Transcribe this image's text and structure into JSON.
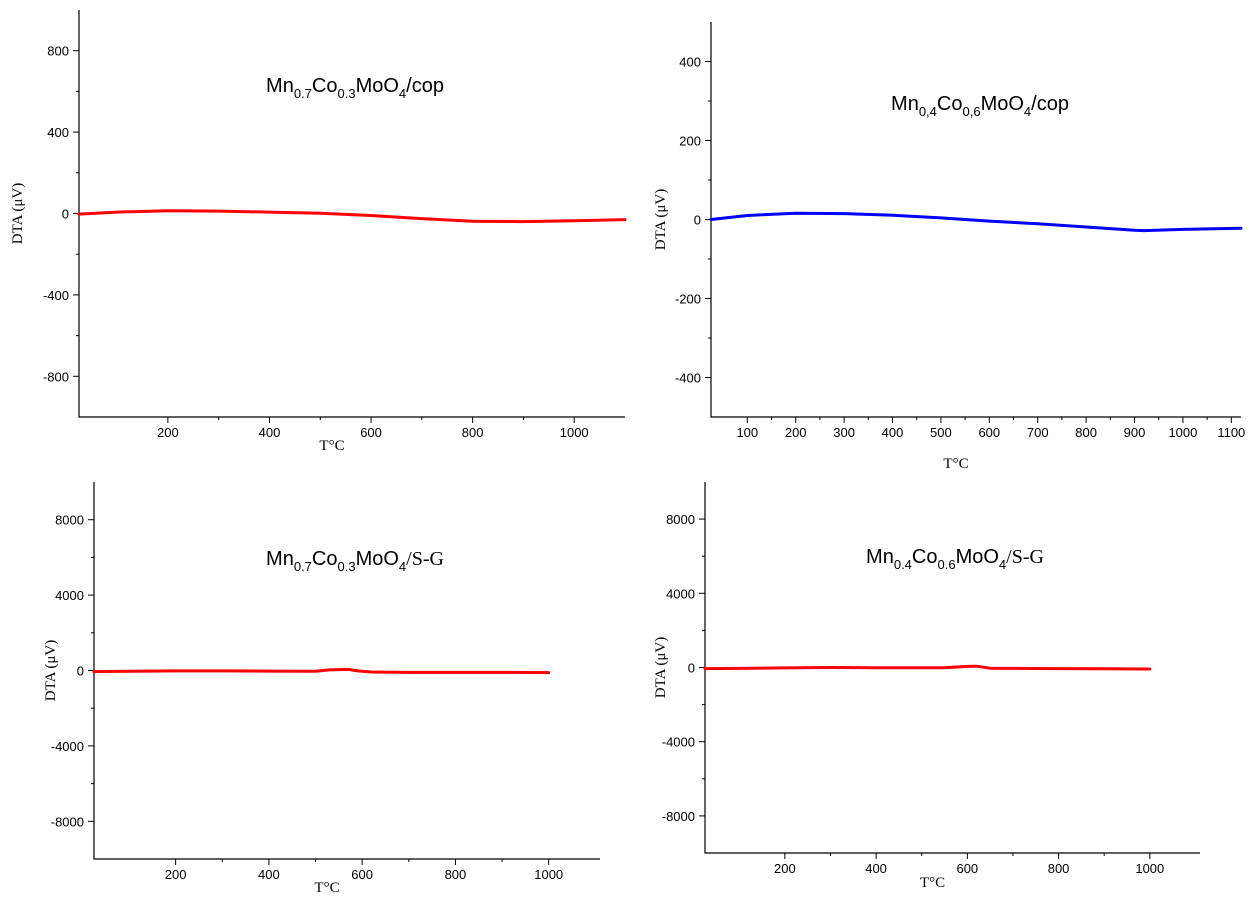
{
  "chart_data": [
    {
      "type": "line",
      "title_parts": [
        {
          "text": "Mn"
        },
        {
          "text": "0.7",
          "sub": true
        },
        {
          "text": "Co"
        },
        {
          "text": "0.3",
          "sub": true
        },
        {
          "text": "MoO"
        },
        {
          "text": "4",
          "sub": true
        },
        {
          "text": "/cop"
        }
      ],
      "xlabel": "T°C",
      "ylabel": "DTA (μV)",
      "xlim": [
        25,
        1100
      ],
      "ylim": [
        -1000,
        1000
      ],
      "x_ticks": [
        200,
        400,
        600,
        800,
        1000
      ],
      "y_ticks": [
        -800,
        -400,
        0,
        400,
        800
      ],
      "x_tick_labels": [
        "200",
        "400",
        "600",
        "800",
        "1000"
      ],
      "y_tick_labels": [
        "-800",
        "-400",
        "0",
        "400",
        "800"
      ],
      "color": "#ff0000",
      "series": [
        {
          "x": [
            25,
            100,
            200,
            300,
            400,
            500,
            600,
            700,
            800,
            900,
            1000,
            1100
          ],
          "y": [
            -3,
            7,
            14,
            12,
            7,
            1,
            -10,
            -25,
            -38,
            -40,
            -36,
            -30
          ]
        }
      ]
    },
    {
      "type": "line",
      "title_parts": [
        {
          "text": "Mn"
        },
        {
          "text": "0,4",
          "sub": true
        },
        {
          "text": "Co"
        },
        {
          "text": "0,6",
          "sub": true
        },
        {
          "text": "MoO"
        },
        {
          "text": "4",
          "sub": true
        },
        {
          "text": "/cop"
        }
      ],
      "xlabel": "T°C",
      "ylabel": "DTA (μV)",
      "xlim": [
        25,
        1120
      ],
      "ylim": [
        -500,
        500
      ],
      "x_ticks": [
        100,
        200,
        300,
        400,
        500,
        600,
        700,
        800,
        900,
        1000,
        1100
      ],
      "y_ticks": [
        -400,
        -200,
        0,
        200,
        400
      ],
      "x_tick_labels": [
        "100",
        "200",
        "300",
        "400",
        "500",
        "600",
        "700",
        "800",
        "900",
        "1000",
        "1100"
      ],
      "y_tick_labels": [
        "-400",
        "-200",
        "0",
        "200",
        "400"
      ],
      "color": "#0000ff",
      "series": [
        {
          "x": [
            25,
            100,
            200,
            300,
            400,
            500,
            600,
            700,
            800,
            900,
            920,
            1000,
            1120
          ],
          "y": [
            0,
            10,
            16,
            15,
            11,
            4,
            -4,
            -11,
            -19,
            -27,
            -28,
            -25,
            -22
          ]
        }
      ]
    },
    {
      "type": "line",
      "title_parts": [
        {
          "text": "Mn"
        },
        {
          "text": "0.7",
          "sub": true
        },
        {
          "text": "Co"
        },
        {
          "text": "0.3",
          "sub": true
        },
        {
          "text": "MoO"
        },
        {
          "text": "4",
          "sub": true
        },
        {
          "text": "/S-G",
          "serif": true
        }
      ],
      "xlabel": "T°C",
      "ylabel": "DTA (μV)",
      "xlim": [
        25,
        1110
      ],
      "ylim": [
        -10000,
        10000
      ],
      "x_ticks": [
        200,
        400,
        600,
        800,
        1000
      ],
      "y_ticks": [
        -8000,
        -4000,
        0,
        4000,
        8000
      ],
      "x_tick_labels": [
        "200",
        "400",
        "600",
        "800",
        "1000"
      ],
      "y_tick_labels": [
        "-8000",
        "-4000",
        "0",
        "4000",
        "8000"
      ],
      "color": "#ff0000",
      "series": [
        {
          "x": [
            25,
            100,
            200,
            300,
            400,
            500,
            530,
            570,
            590,
            620,
            700,
            800,
            900,
            1000
          ],
          "y": [
            -60,
            -40,
            -20,
            -20,
            -30,
            -40,
            30,
            60,
            -20,
            -80,
            -100,
            -100,
            -100,
            -110
          ]
        }
      ]
    },
    {
      "type": "line",
      "title_parts": [
        {
          "text": "Mn"
        },
        {
          "text": "0.4",
          "sub": true
        },
        {
          "text": "Co"
        },
        {
          "text": "0.6",
          "sub": true
        },
        {
          "text": "MoO"
        },
        {
          "text": "4",
          "sub": true
        },
        {
          "text": "/S-G",
          "serif": true
        }
      ],
      "xlabel": "T°C",
      "ylabel": "DTA (μV)",
      "xlim": [
        25,
        1110
      ],
      "ylim": [
        -10000,
        10000
      ],
      "x_ticks": [
        200,
        400,
        600,
        800,
        1000
      ],
      "y_ticks": [
        -8000,
        -4000,
        0,
        4000,
        8000
      ],
      "x_tick_labels": [
        "200",
        "400",
        "600",
        "800",
        "1000"
      ],
      "y_tick_labels": [
        "-8000",
        "-4000",
        "0",
        "4000",
        "8000"
      ],
      "color": "#ff0000",
      "series": [
        {
          "x": [
            25,
            100,
            200,
            300,
            400,
            500,
            550,
            600,
            620,
            650,
            700,
            800,
            900,
            1000
          ],
          "y": [
            -60,
            -50,
            -20,
            0,
            -10,
            -10,
            -10,
            60,
            70,
            -40,
            -50,
            -60,
            -70,
            -80
          ]
        }
      ]
    }
  ]
}
